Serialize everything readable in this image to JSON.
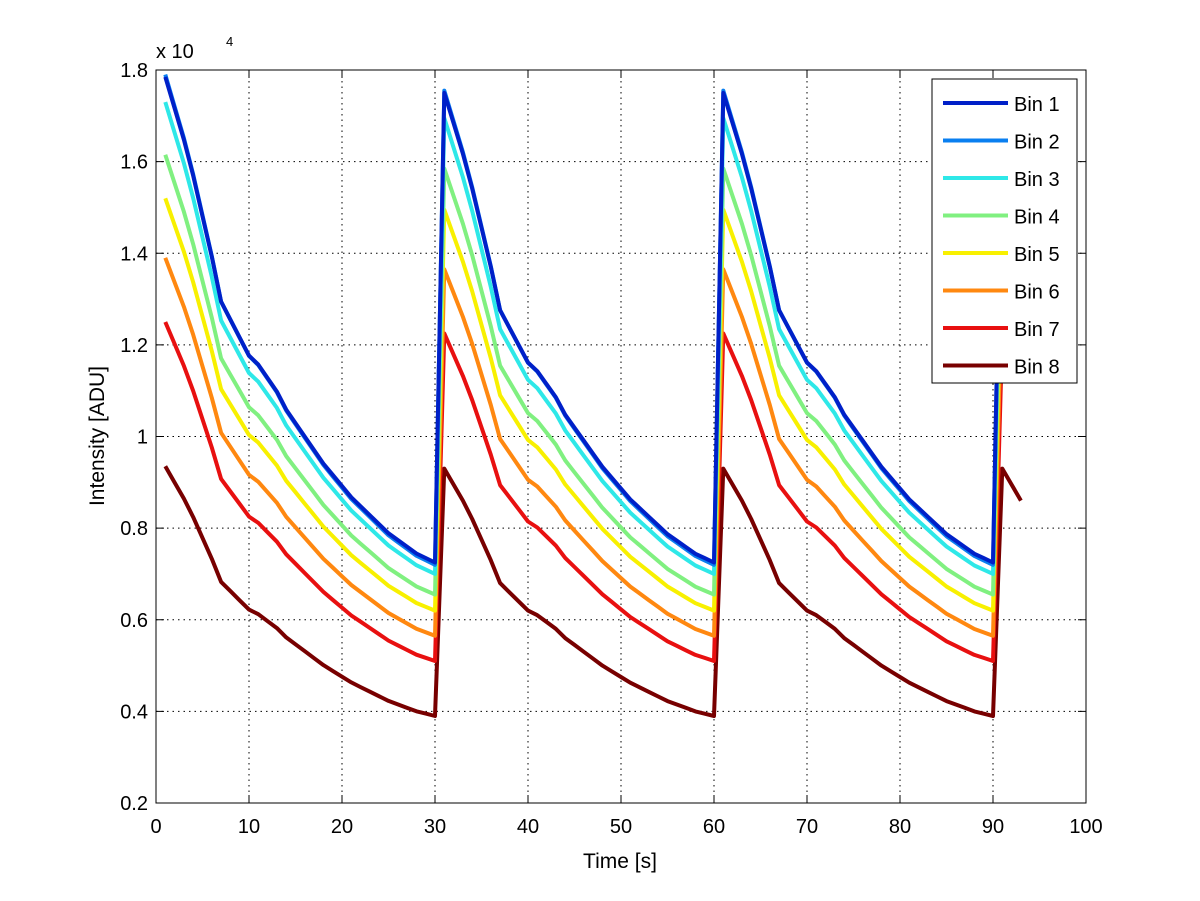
{
  "chart_data": {
    "type": "line",
    "title": "",
    "xlabel": "Time [s]",
    "ylabel": "Intensity [ADU]",
    "y_multiplier": "x 10",
    "y_multiplier_exp": "4",
    "xlim": [
      0,
      100
    ],
    "ylim": [
      0.2,
      1.8
    ],
    "xticks": [
      "0",
      "10",
      "20",
      "30",
      "40",
      "50",
      "60",
      "70",
      "80",
      "90",
      "100"
    ],
    "yticks": [
      "0.2",
      "0.4",
      "0.6",
      "0.8",
      "1",
      "1.2",
      "1.4",
      "1.6",
      "1.8"
    ],
    "grid": true,
    "legend_position": "top-right",
    "period_s": 30,
    "x_range": [
      1,
      93
    ],
    "cycle_shape": [
      1.0,
      0.93,
      0.86,
      0.78,
      0.69,
      0.6,
      0.5,
      0.46,
      0.42,
      0.38,
      0.36,
      0.33,
      0.3,
      0.26,
      0.23,
      0.2,
      0.17,
      0.14,
      0.115,
      0.09,
      0.065,
      0.045,
      0.025,
      0.005,
      -0.015,
      -0.03,
      -0.045,
      -0.06,
      -0.07,
      -0.08
    ],
    "series": [
      {
        "name": "Bin 1",
        "color": "#0020c8",
        "start": 1.785,
        "end": 0.725,
        "restart": 1.75
      },
      {
        "name": "Bin 2",
        "color": "#0a7ff0",
        "start": 1.79,
        "end": 0.72,
        "restart": 1.755
      },
      {
        "name": "Bin 3",
        "color": "#2ee8e8",
        "start": 1.73,
        "end": 0.7,
        "restart": 1.695
      },
      {
        "name": "Bin 4",
        "color": "#80f080",
        "start": 1.615,
        "end": 0.655,
        "restart": 1.585
      },
      {
        "name": "Bin 5",
        "color": "#f8f000",
        "start": 1.52,
        "end": 0.62,
        "restart": 1.495
      },
      {
        "name": "Bin 6",
        "color": "#ff8810",
        "start": 1.39,
        "end": 0.565,
        "restart": 1.365
      },
      {
        "name": "Bin 7",
        "color": "#e81010",
        "start": 1.25,
        "end": 0.51,
        "restart": 1.225
      },
      {
        "name": "Bin 8",
        "color": "#780000",
        "start": 0.935,
        "end": 0.39,
        "restart": 0.93
      }
    ]
  }
}
